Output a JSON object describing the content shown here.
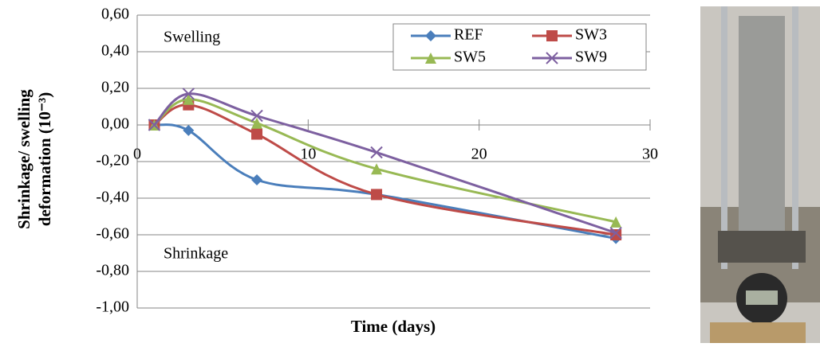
{
  "chart_data": {
    "type": "line",
    "y_label": [
      "Shrinkage/ swelling",
      "deformation (10⁻³)"
    ],
    "x_label": "Time (days)",
    "annotations": [
      "Swelling",
      "Shrinkage"
    ],
    "x": [
      1,
      3,
      7,
      14,
      28
    ],
    "series": [
      {
        "name": "REF",
        "color": "#4a7ebb",
        "marker": "diamond",
        "values": [
          0,
          -0.03,
          -0.3,
          -0.38,
          -0.62
        ]
      },
      {
        "name": "SW3",
        "color": "#be4b48",
        "marker": "square",
        "values": [
          0,
          0.11,
          -0.05,
          -0.38,
          -0.6
        ]
      },
      {
        "name": "SW5",
        "color": "#98b954",
        "marker": "triangle",
        "values": [
          0,
          0.14,
          0.01,
          -0.24,
          -0.53
        ]
      },
      {
        "name": "SW9",
        "color": "#7d60a0",
        "marker": "cross",
        "values": [
          0,
          0.17,
          0.05,
          -0.15,
          -0.59
        ]
      }
    ],
    "xlim": [
      0,
      30
    ],
    "xticks": [
      0,
      10,
      20,
      30
    ],
    "ylim": [
      -1,
      0.6
    ],
    "yticks": [
      {
        "value": -1,
        "label": "-1,00"
      },
      {
        "value": -0.8,
        "label": "-0,80"
      },
      {
        "value": -0.6,
        "label": "-0,60"
      },
      {
        "value": -0.4,
        "label": "-0,40"
      },
      {
        "value": -0.2,
        "label": "-0,20"
      },
      {
        "value": 0,
        "label": "0,00"
      },
      {
        "value": 0.2,
        "label": "0,20"
      },
      {
        "value": 0.4,
        "label": "0,40"
      },
      {
        "value": 0.6,
        "label": "0,60"
      }
    ],
    "grid": true,
    "legend": "upper right"
  }
}
